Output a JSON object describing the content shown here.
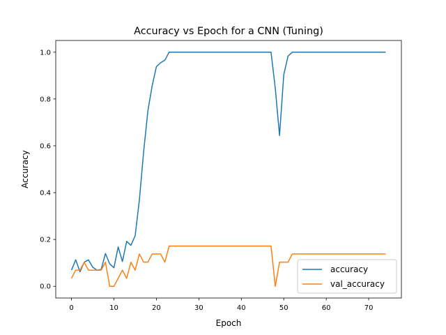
{
  "chart_data": {
    "type": "line",
    "title": "Accuracy vs Epoch for a CNN (Tuning)",
    "xlabel": "Epoch",
    "ylabel": "Accuracy",
    "xlim": [
      -3.7,
      77.7
    ],
    "ylim": [
      -0.05,
      1.05
    ],
    "xticks": [
      0,
      10,
      20,
      30,
      40,
      50,
      60,
      70
    ],
    "yticks": [
      0.0,
      0.2,
      0.4,
      0.6,
      0.8,
      1.0
    ],
    "xtick_labels": [
      "0",
      "10",
      "20",
      "30",
      "40",
      "50",
      "60",
      "70"
    ],
    "ytick_labels": [
      "0.0",
      "0.2",
      "0.4",
      "0.6",
      "0.8",
      "1.0"
    ],
    "grid": false,
    "legend_position": "lower-right",
    "x": [
      0,
      1,
      2,
      3,
      4,
      5,
      6,
      7,
      8,
      9,
      10,
      11,
      12,
      13,
      14,
      15,
      16,
      17,
      18,
      19,
      20,
      21,
      22,
      23,
      24,
      25,
      26,
      27,
      28,
      29,
      30,
      31,
      32,
      33,
      34,
      35,
      36,
      37,
      38,
      39,
      40,
      41,
      42,
      43,
      44,
      45,
      46,
      47,
      48,
      49,
      50,
      51,
      52,
      53,
      54,
      55,
      56,
      57,
      58,
      59,
      60,
      61,
      62,
      63,
      64,
      65,
      66,
      67,
      68,
      69,
      70,
      71,
      72,
      73,
      74
    ],
    "series": [
      {
        "name": "accuracy",
        "color": "#1f77b4",
        "values": [
          0.069,
          0.113,
          0.062,
          0.103,
          0.113,
          0.082,
          0.069,
          0.072,
          0.14,
          0.096,
          0.079,
          0.168,
          0.106,
          0.192,
          0.175,
          0.216,
          0.37,
          0.575,
          0.75,
          0.856,
          0.938,
          0.955,
          0.966,
          1.0,
          1.0,
          1.0,
          1.0,
          1.0,
          1.0,
          1.0,
          1.0,
          1.0,
          1.0,
          1.0,
          1.0,
          1.0,
          1.0,
          1.0,
          1.0,
          1.0,
          1.0,
          1.0,
          1.0,
          1.0,
          1.0,
          1.0,
          1.0,
          1.0,
          0.846,
          0.644,
          0.904,
          0.983,
          1.0,
          1.0,
          1.0,
          1.0,
          1.0,
          1.0,
          1.0,
          1.0,
          1.0,
          1.0,
          1.0,
          1.0,
          1.0,
          1.0,
          1.0,
          1.0,
          1.0,
          1.0,
          1.0,
          1.0,
          1.0,
          1.0,
          1.0
        ]
      },
      {
        "name": "val_accuracy",
        "color": "#ff7f0e",
        "values": [
          0.034,
          0.069,
          0.069,
          0.103,
          0.069,
          0.069,
          0.069,
          0.069,
          0.103,
          0.0,
          0.0,
          0.034,
          0.069,
          0.034,
          0.103,
          0.069,
          0.138,
          0.103,
          0.103,
          0.138,
          0.138,
          0.138,
          0.103,
          0.172,
          0.172,
          0.172,
          0.172,
          0.172,
          0.172,
          0.172,
          0.172,
          0.172,
          0.172,
          0.172,
          0.172,
          0.172,
          0.172,
          0.172,
          0.172,
          0.172,
          0.172,
          0.172,
          0.172,
          0.172,
          0.172,
          0.172,
          0.172,
          0.172,
          0.0,
          0.103,
          0.103,
          0.103,
          0.138,
          0.138,
          0.138,
          0.138,
          0.138,
          0.138,
          0.138,
          0.138,
          0.138,
          0.138,
          0.138,
          0.138,
          0.138,
          0.138,
          0.138,
          0.138,
          0.138,
          0.138,
          0.138,
          0.138,
          0.138,
          0.138,
          0.138
        ]
      }
    ]
  }
}
